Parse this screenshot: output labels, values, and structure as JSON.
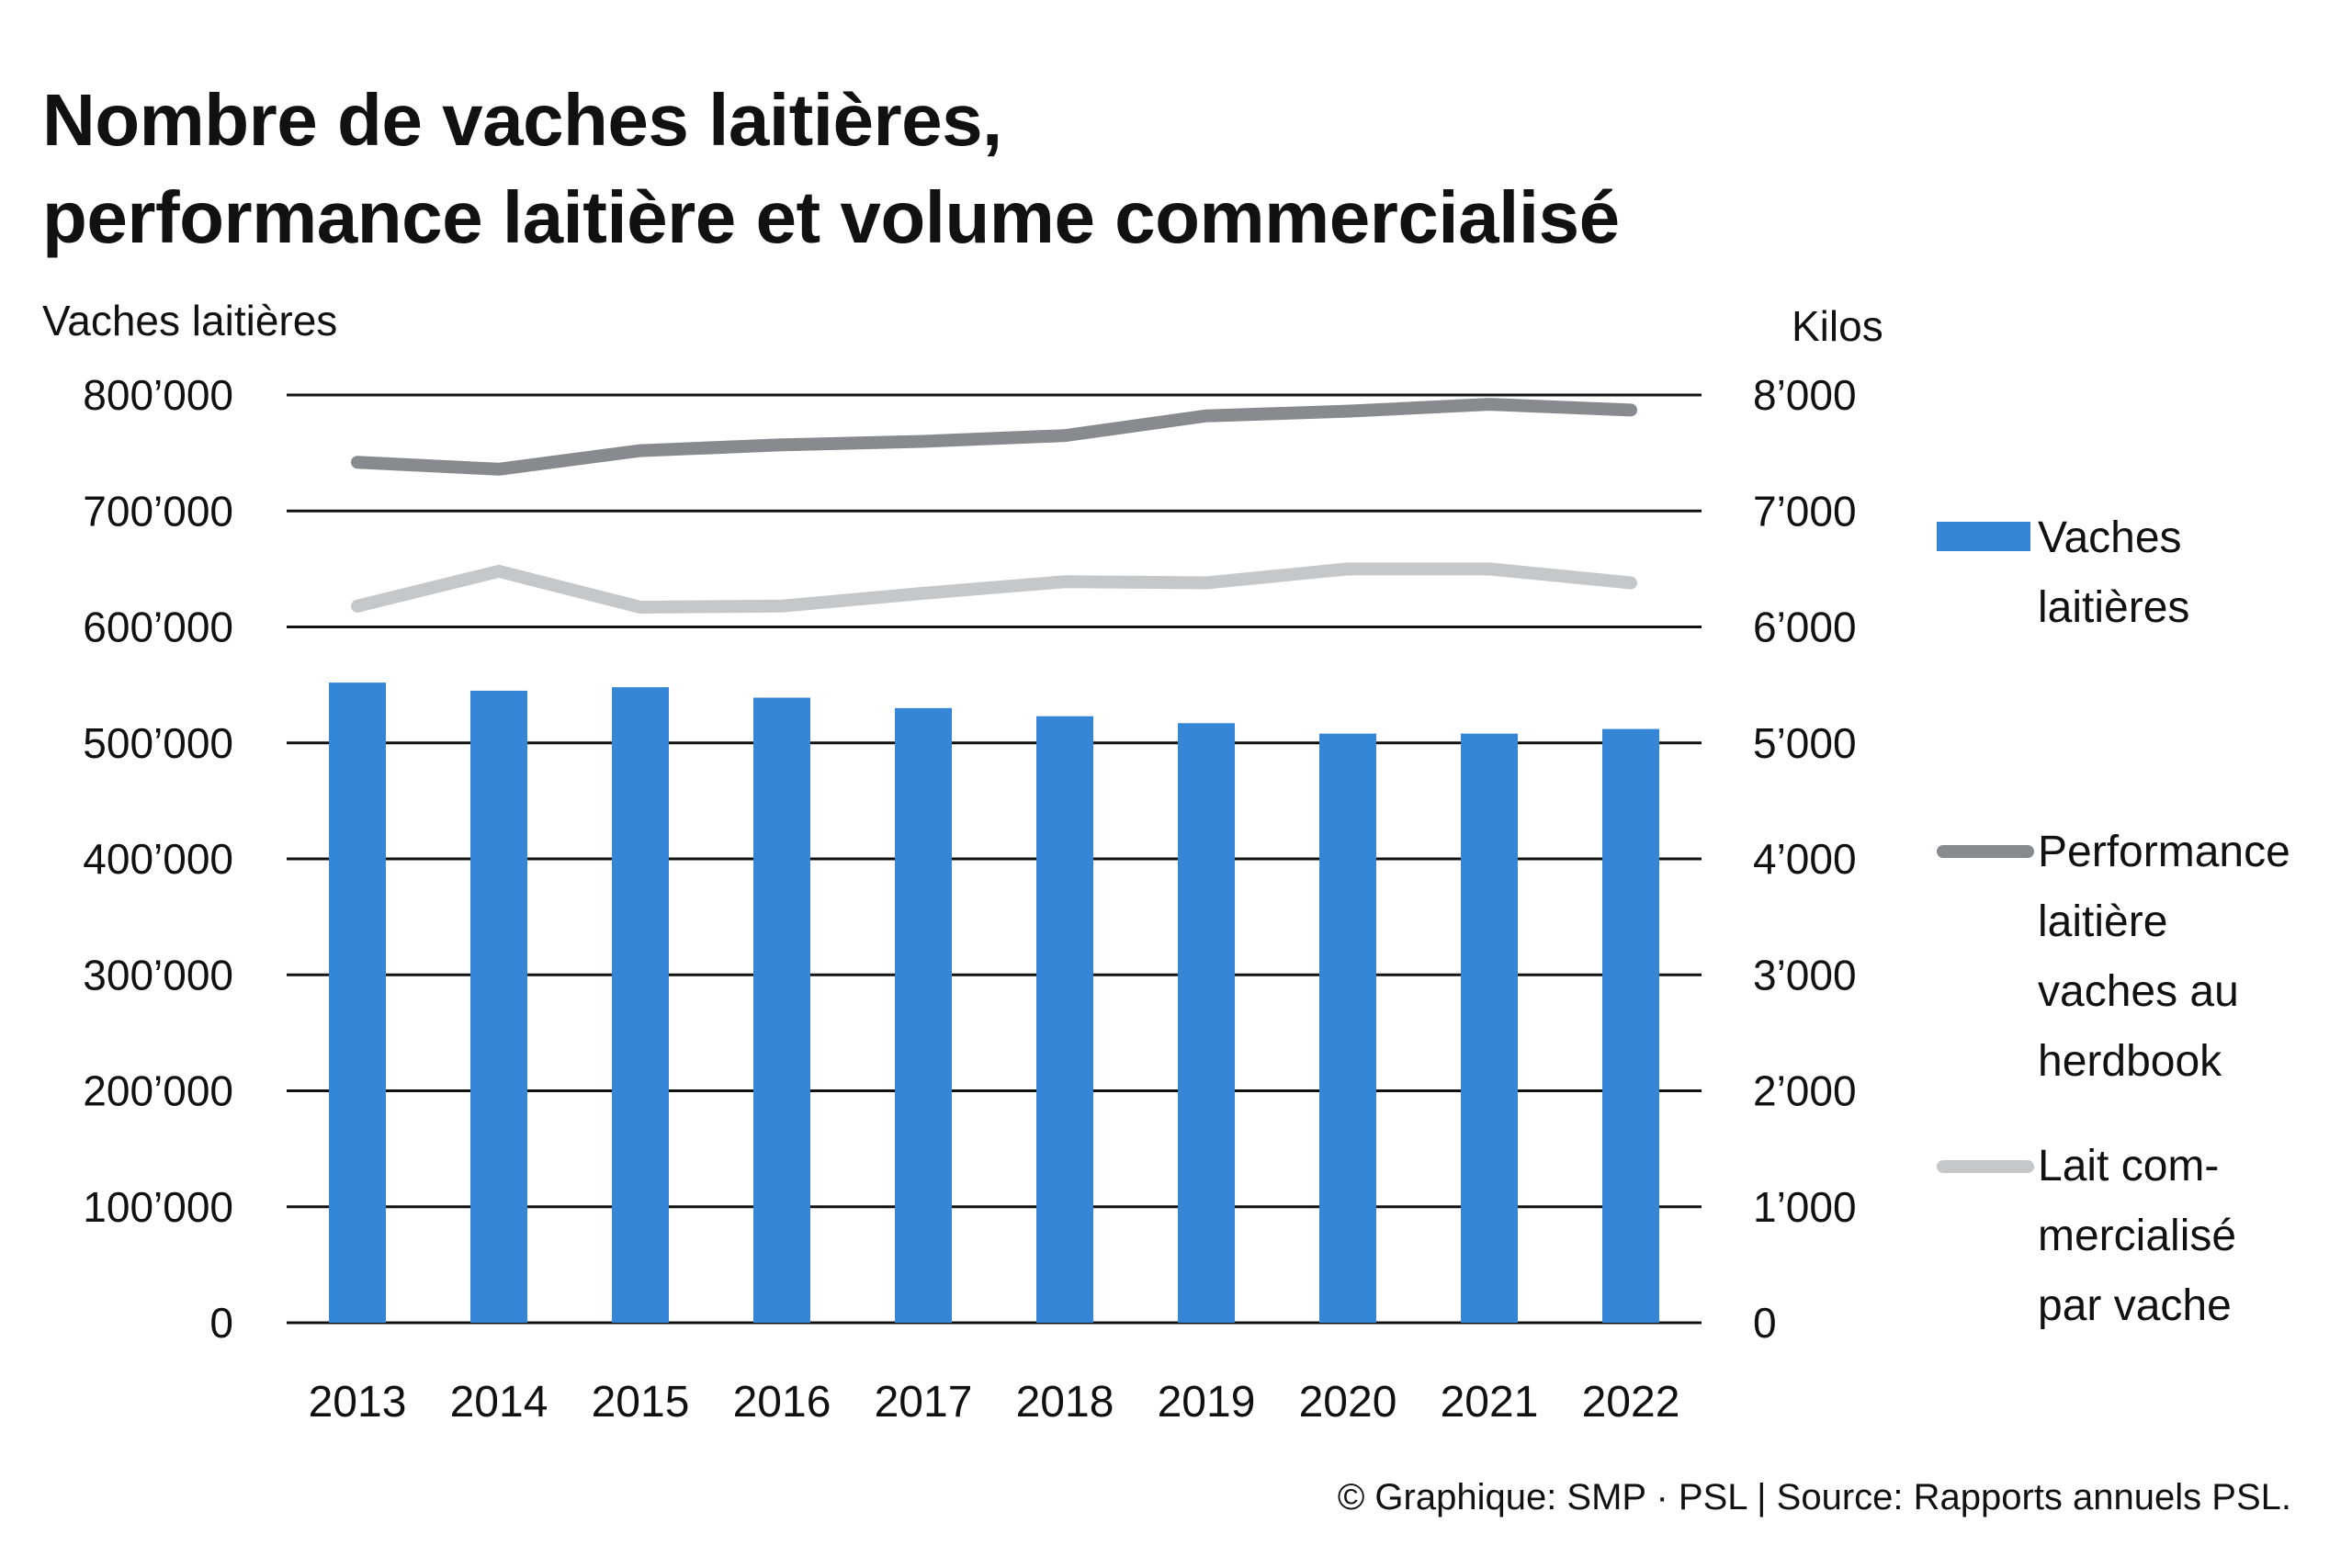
{
  "title": [
    "Nombre de vaches laitières,",
    "performance laitière et volume commercialisé"
  ],
  "footer": "© Graphique: SMP · PSL | Source: Rapports annuels PSL.",
  "colors": {
    "bar": "#3586d6",
    "performance": "#878b90",
    "lait": "#c4c8cb",
    "grid": "#111111"
  },
  "chart_data": {
    "type": "bar",
    "categories": [
      "2013",
      "2014",
      "2015",
      "2016",
      "2017",
      "2018",
      "2019",
      "2020",
      "2021",
      "2022"
    ],
    "y_left": {
      "label": "Vaches laitières",
      "range": [
        0,
        800000
      ],
      "ticks": [
        "0",
        "100’000",
        "200’000",
        "300’000",
        "400’000",
        "500’000",
        "600’000",
        "700’000",
        "800’000"
      ]
    },
    "y_right": {
      "label": "Kilos",
      "range": [
        0,
        8000
      ],
      "ticks": [
        "0",
        "1’000",
        "2’000",
        "3’000",
        "4’000",
        "5’000",
        "6’000",
        "7’000",
        "8’000"
      ]
    },
    "grid": true,
    "legend_position": "right",
    "series": [
      {
        "name": "Vaches laitières",
        "type": "bar",
        "axis": "left",
        "values": [
          552000,
          545000,
          548000,
          539000,
          530000,
          523000,
          517000,
          508000,
          508000,
          512000
        ]
      },
      {
        "name": "Performance laitière vaches au herdbook",
        "type": "line",
        "axis": "right",
        "values": [
          7420,
          7360,
          7520,
          7570,
          7600,
          7650,
          7820,
          7860,
          7920,
          7870
        ]
      },
      {
        "name": "Lait commercialisé par vache",
        "type": "line",
        "axis": "right",
        "values": [
          6180,
          6480,
          6170,
          6180,
          6290,
          6390,
          6380,
          6500,
          6500,
          6380
        ]
      }
    ]
  },
  "legend": {
    "bar": [
      "Vaches",
      "laitières"
    ],
    "performance": [
      "Performance",
      "laitière",
      "vaches au",
      "herdbook"
    ],
    "lait": [
      "Lait com-",
      "mercialisé",
      "par vache"
    ]
  }
}
